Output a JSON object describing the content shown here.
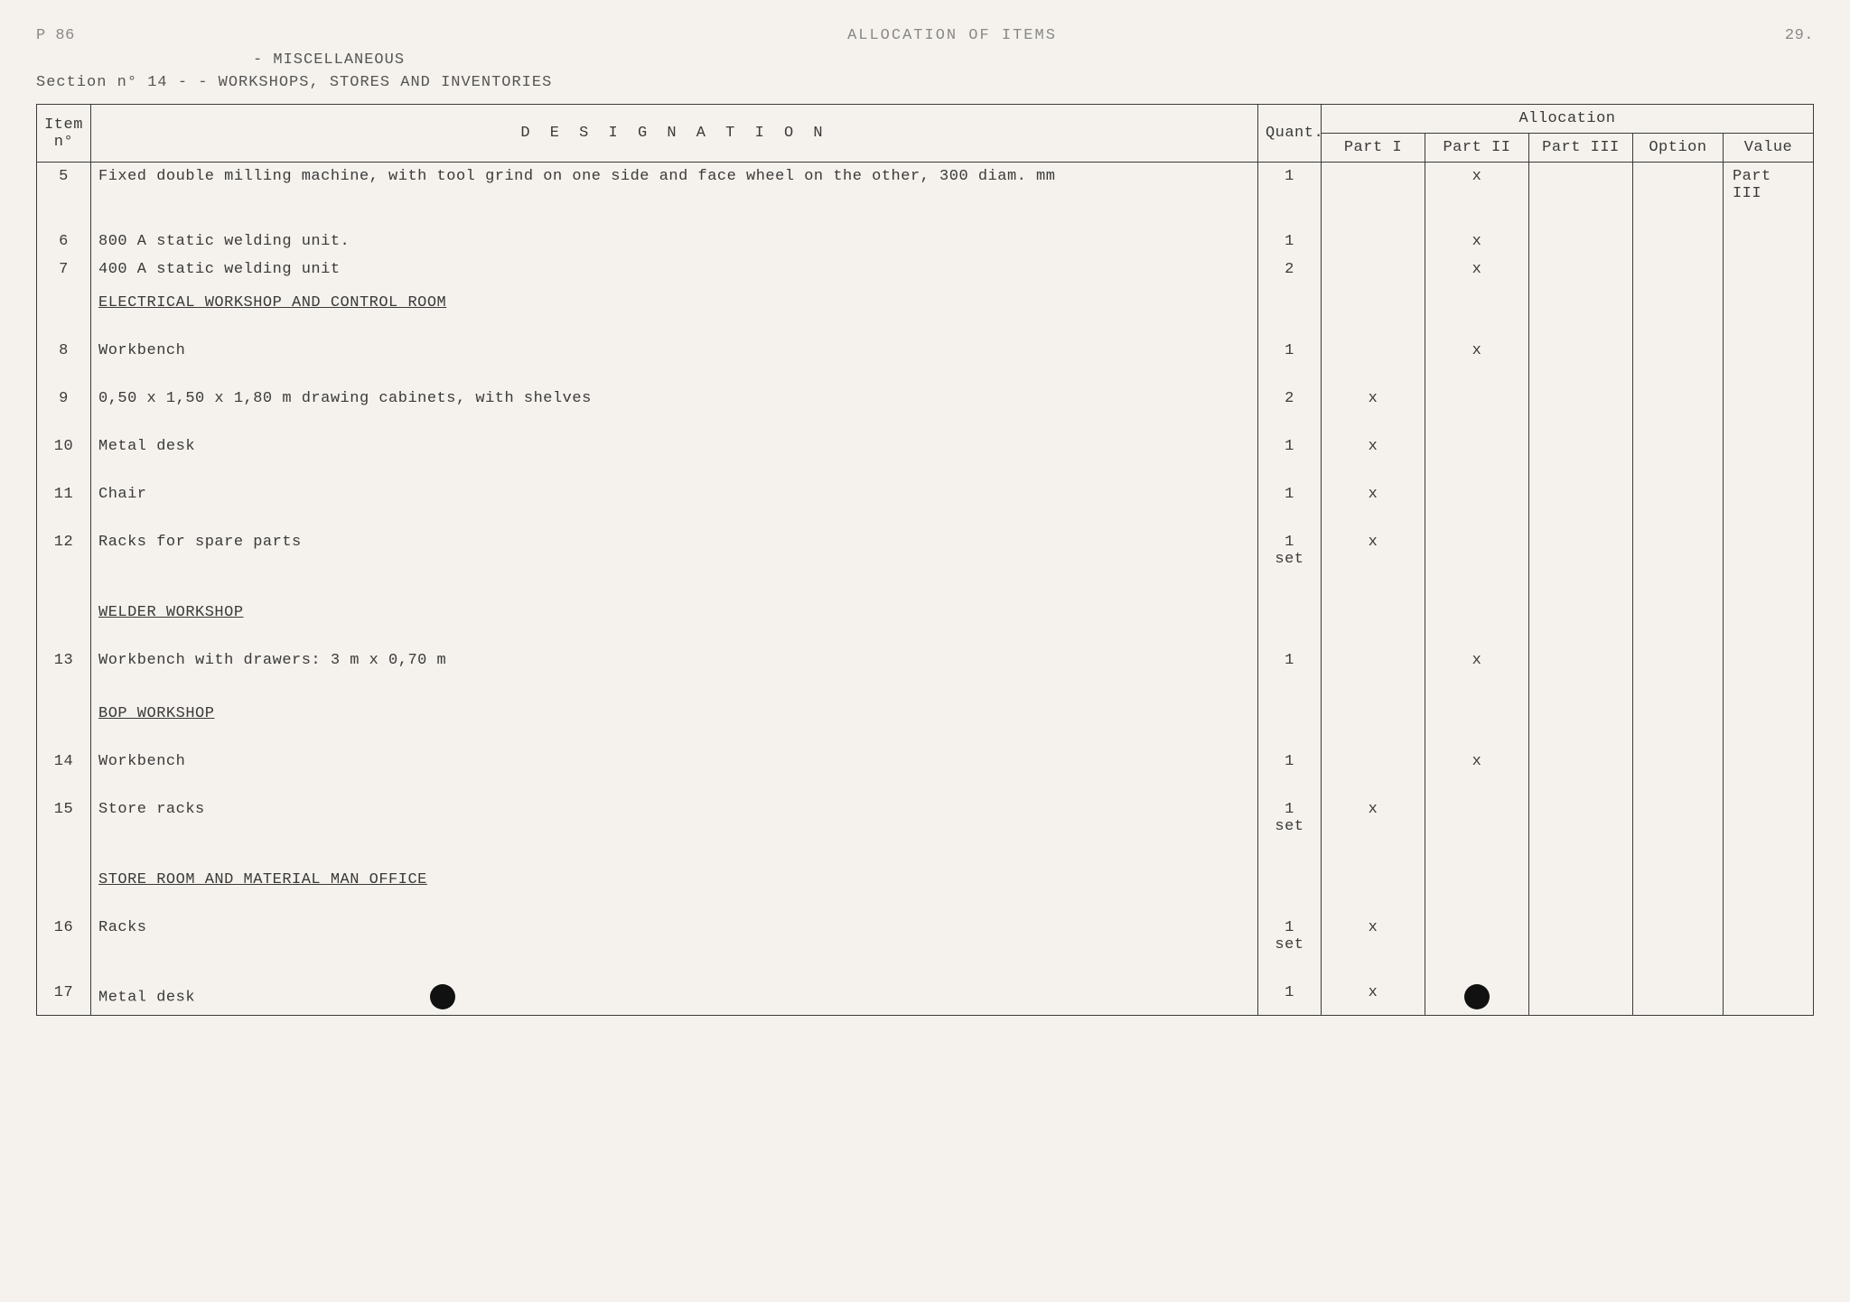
{
  "header": {
    "page_code": "P 86",
    "title": "ALLOCATION OF ITEMS",
    "page_number": "29.",
    "subtitle": "- MISCELLANEOUS",
    "section_line": "Section n° 14 - - WORKSHOPS, STORES AND INVENTORIES"
  },
  "table": {
    "columns": {
      "item": "Item n°",
      "designation": "D E S I G N A T I O N",
      "quant": "Quant.",
      "allocation": "Allocation",
      "part1": "Part I",
      "part2": "Part II",
      "part3": "Part III",
      "option": "Option",
      "value": "Value"
    },
    "value_note": "Part III",
    "rows": [
      {
        "type": "item",
        "no": "5",
        "desig": "Fixed double milling machine, with tool grind on one side and face wheel on the other, 300 diam. mm",
        "quant": "1",
        "p1": "",
        "p2": "x",
        "p3": "",
        "opt": "",
        "val": ""
      },
      {
        "type": "gap"
      },
      {
        "type": "item",
        "no": "6",
        "desig": "800 A static welding unit.",
        "quant": "1",
        "p1": "",
        "p2": "x",
        "p3": "",
        "opt": "",
        "val": ""
      },
      {
        "type": "item",
        "no": "7",
        "desig": "400 A static welding unit",
        "quant": "2",
        "p1": "",
        "p2": "x",
        "p3": "",
        "opt": "",
        "val": ""
      },
      {
        "type": "section",
        "title": "ELECTRICAL WORKSHOP AND CONTROL ROOM"
      },
      {
        "type": "gap"
      },
      {
        "type": "item",
        "no": "8",
        "desig": "Workbench",
        "quant": "1",
        "p1": "",
        "p2": "x",
        "p3": "",
        "opt": "",
        "val": ""
      },
      {
        "type": "gap"
      },
      {
        "type": "item",
        "no": "9",
        "desig": "0,50 x 1,50 x 1,80 m drawing cabinets, with shelves",
        "quant": "2",
        "p1": "x",
        "p2": "",
        "p3": "",
        "opt": "",
        "val": ""
      },
      {
        "type": "gap"
      },
      {
        "type": "item",
        "no": "10",
        "desig": "Metal desk",
        "quant": "1",
        "p1": "x",
        "p2": "",
        "p3": "",
        "opt": "",
        "val": ""
      },
      {
        "type": "gap"
      },
      {
        "type": "item",
        "no": "11",
        "desig": "Chair",
        "quant": "1",
        "p1": "x",
        "p2": "",
        "p3": "",
        "opt": "",
        "val": ""
      },
      {
        "type": "gap"
      },
      {
        "type": "item",
        "no": "12",
        "desig": "Racks for spare parts",
        "quant": "1 set",
        "p1": "x",
        "p2": "",
        "p3": "",
        "opt": "",
        "val": ""
      },
      {
        "type": "gap"
      },
      {
        "type": "section",
        "title": "WELDER WORKSHOP"
      },
      {
        "type": "gap"
      },
      {
        "type": "item",
        "no": "13",
        "desig": "Workbench with drawers: 3 m x 0,70 m",
        "quant": "1",
        "p1": "",
        "p2": "x",
        "p3": "",
        "opt": "",
        "val": ""
      },
      {
        "type": "gap"
      },
      {
        "type": "section",
        "title": "BOP WORKSHOP"
      },
      {
        "type": "gap"
      },
      {
        "type": "item",
        "no": "14",
        "desig": "Workbench",
        "quant": "1",
        "p1": "",
        "p2": "x",
        "p3": "",
        "opt": "",
        "val": ""
      },
      {
        "type": "gap"
      },
      {
        "type": "item",
        "no": "15",
        "desig": "Store racks",
        "quant": "1 set",
        "p1": "x",
        "p2": "",
        "p3": "",
        "opt": "",
        "val": ""
      },
      {
        "type": "gap"
      },
      {
        "type": "section",
        "title": "STORE ROOM AND MATERIAL MAN OFFICE"
      },
      {
        "type": "gap"
      },
      {
        "type": "item",
        "no": "16",
        "desig": "Racks",
        "quant": "1 set",
        "p1": "x",
        "p2": "",
        "p3": "",
        "opt": "",
        "val": ""
      },
      {
        "type": "gap"
      },
      {
        "type": "item",
        "no": "17",
        "desig": "Metal desk",
        "quant": "1",
        "p1": "x",
        "p2": "",
        "p3": "",
        "opt": "",
        "val": "",
        "has_dots": true
      }
    ]
  },
  "colors": {
    "background": "#f5f2ed",
    "text": "#3a3a3a",
    "faded": "#888888",
    "border": "#3a3a3a"
  },
  "typography": {
    "font_family": "Courier New",
    "base_fontsize": 17
  }
}
